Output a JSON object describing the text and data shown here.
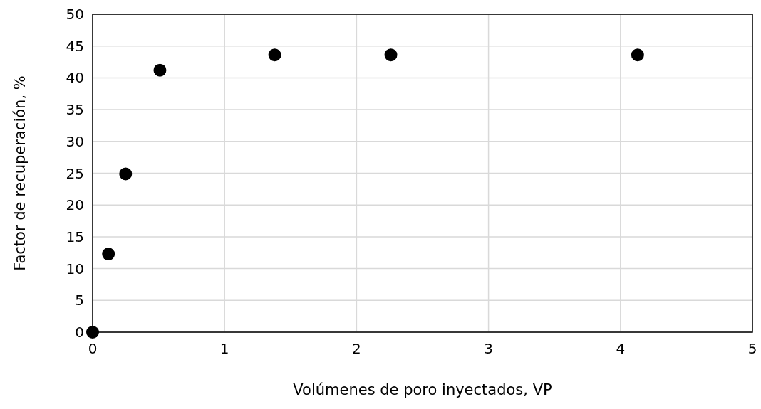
{
  "chart_data": {
    "type": "scatter",
    "xlabel": "Volúmenes de poro inyectados, VP",
    "ylabel": "Factor de recuperación, %",
    "x": [
      0,
      0.12,
      0.25,
      0.51,
      1.38,
      2.26,
      4.13
    ],
    "series": [
      {
        "color": "#000000",
        "values": [
          0,
          12.3,
          24.9,
          41.2,
          43.6,
          43.6,
          43.6
        ]
      }
    ],
    "xlim": [
      0,
      5
    ],
    "xticks": [
      0,
      1,
      2,
      3,
      4,
      5
    ],
    "ylim": [
      0,
      50
    ],
    "yticks": [
      0,
      5,
      10,
      15,
      20,
      25,
      30,
      35,
      40,
      45,
      50
    ],
    "grid": true,
    "marker": "circle"
  }
}
